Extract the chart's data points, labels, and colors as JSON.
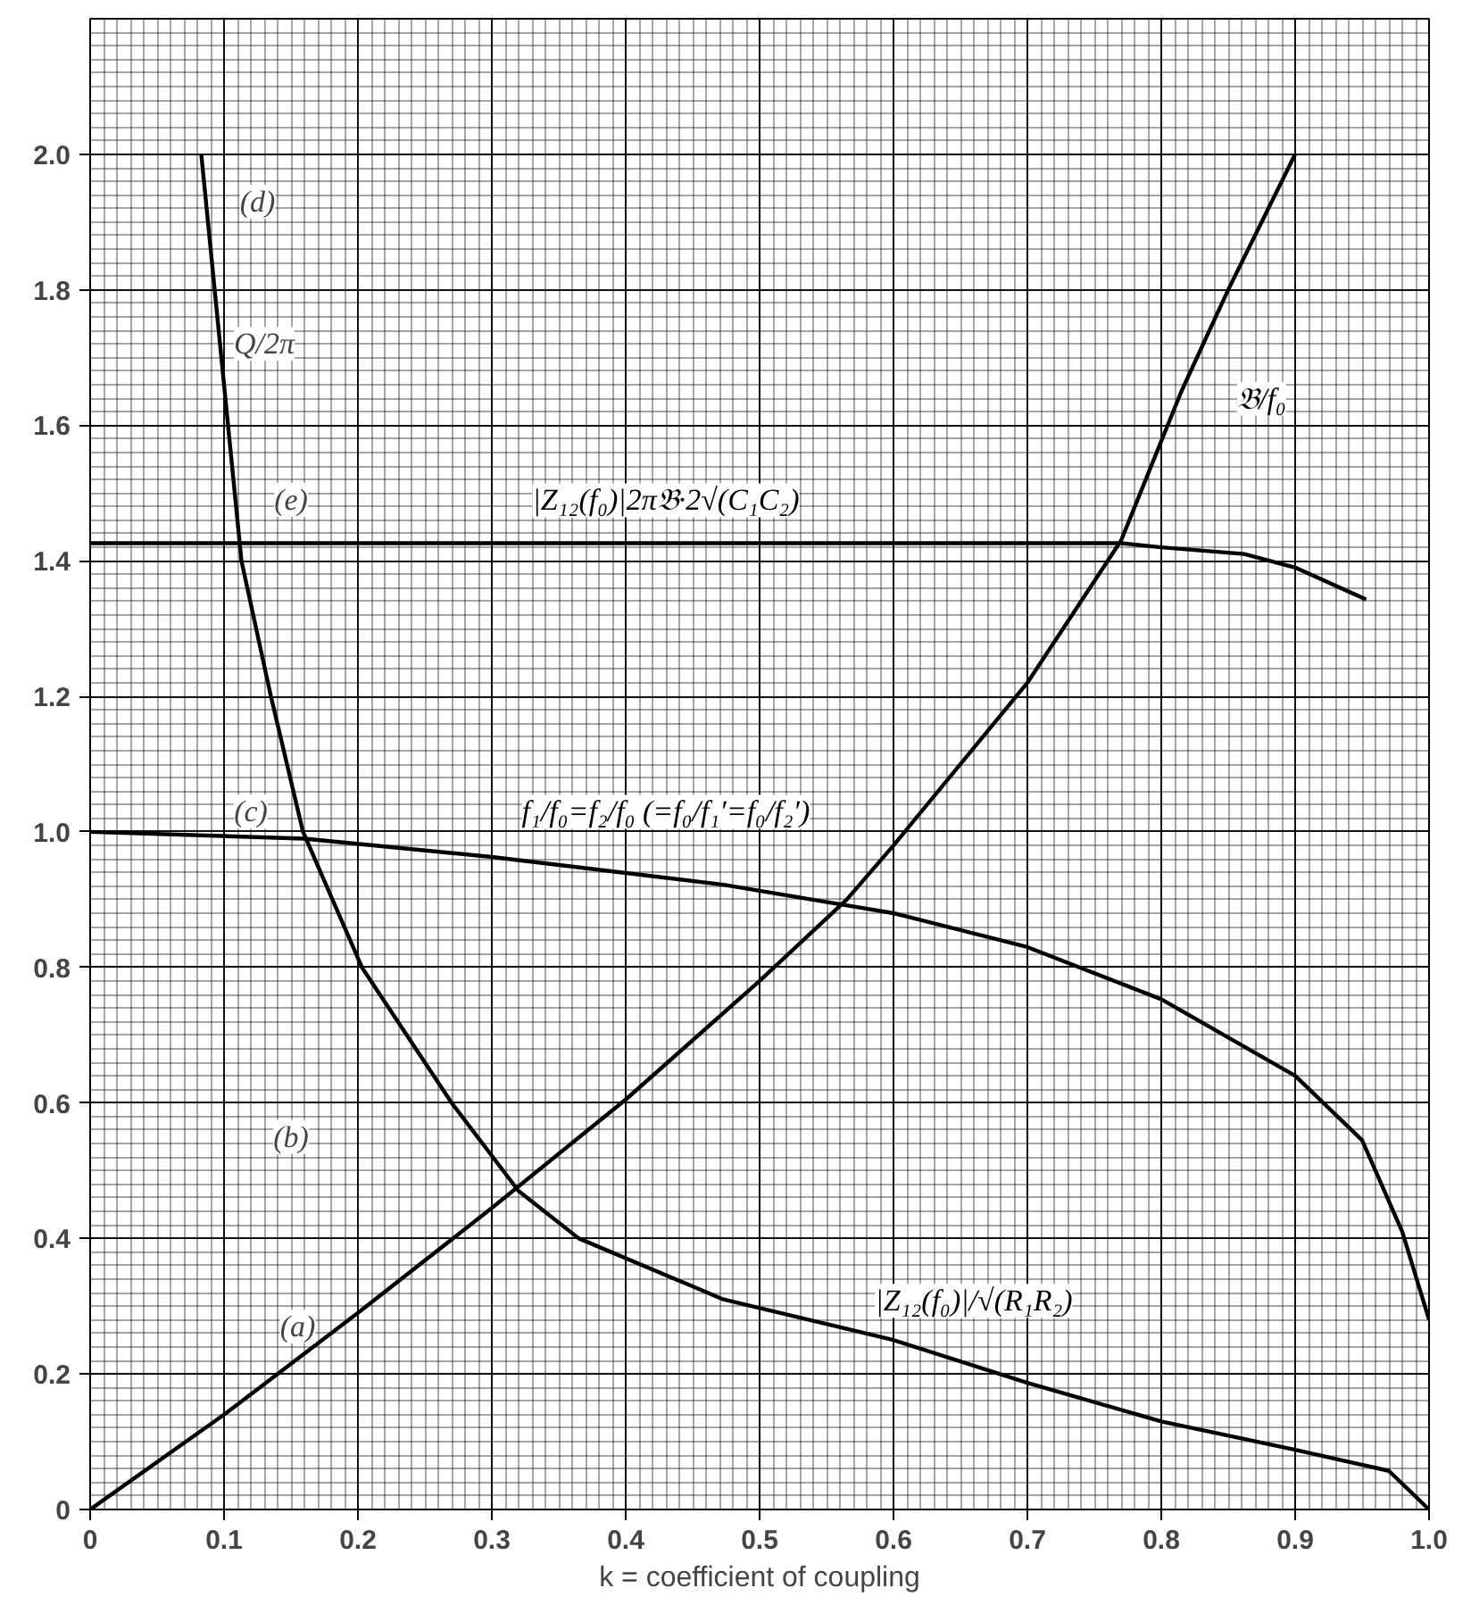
{
  "chart_data": {
    "type": "line",
    "xlabel": "k = coefficient of coupling",
    "xlim": [
      0,
      1.0
    ],
    "ylim": [
      0,
      2.2
    ],
    "xticks": [
      0,
      0.1,
      0.2,
      0.3,
      0.4,
      0.5,
      0.6,
      0.7,
      0.8,
      0.9,
      {
        "value": 1.0,
        "label": "1.0"
      }
    ],
    "yticks": [
      0,
      0.2,
      0.4,
      0.6,
      0.8,
      {
        "value": 1.0,
        "label": "1.0"
      },
      1.2,
      1.4,
      1.6,
      1.8,
      {
        "value": 2.0,
        "label": "2.0"
      }
    ],
    "grid": true,
    "legend": false,
    "marker": "none",
    "line_style": "solid",
    "series": [
      {
        "name": "𝔅/f₀",
        "color": "#000000",
        "x": [
          0,
          0.1,
          0.2,
          0.3,
          0.4,
          0.5,
          0.565,
          0.6,
          0.7,
          0.77,
          0.815,
          0.85,
          0.9
        ],
        "values": [
          0,
          0.14,
          0.29,
          0.445,
          0.605,
          0.78,
          0.9,
          0.98,
          1.22,
          1.43,
          1.65,
          1.8,
          2.0
        ]
      },
      {
        "name": "|Z₁₂(f₀)|/√(R₁R₂)",
        "color": "#000000",
        "x": [
          0.083,
          0.103,
          0.113,
          0.135,
          0.159,
          0.203,
          0.27,
          0.32,
          0.365,
          0.473,
          0.6,
          0.7,
          0.8,
          0.9,
          0.97,
          1.0
        ],
        "values": [
          2.0,
          1.6,
          1.4,
          1.2,
          1.0,
          0.8,
          0.6,
          0.47,
          0.4,
          0.31,
          0.25,
          0.187,
          0.13,
          0.088,
          0.057,
          0
        ]
      },
      {
        "name": "f₁/f₀=f₂/f₀ (=f₀/f₁′=f₀/f₂′)",
        "color": "#000000",
        "x": [
          0,
          0.16,
          0.3,
          0.473,
          0.6,
          0.7,
          0.8,
          0.9,
          0.95,
          0.98,
          1.0
        ],
        "values": [
          1.0,
          0.99,
          0.963,
          0.922,
          0.88,
          0.83,
          0.753,
          0.64,
          0.545,
          0.41,
          0.28
        ]
      },
      {
        "name": "|Z₁₂(f₀)|2π𝔅·2√(C₁C₂)",
        "color": "#000000",
        "x": [
          0,
          0.5,
          0.77,
          0.8,
          0.862,
          0.9,
          0.953
        ],
        "values": [
          1.426,
          1.426,
          1.426,
          1.42,
          1.41,
          1.39,
          1.343
        ]
      }
    ],
    "annotations": [
      {
        "text": "(d)",
        "x": 0.125,
        "y": 1.93
      },
      {
        "text": "Q/2π",
        "x": 0.13,
        "y": 1.72
      },
      {
        "text": "(e)",
        "x": 0.15,
        "y": 1.49
      },
      {
        "text": "(c)",
        "x": 0.12,
        "y": 1.03
      },
      {
        "text": "(b)",
        "x": 0.15,
        "y": 0.55
      },
      {
        "text": "(a)",
        "x": 0.155,
        "y": 0.27
      }
    ]
  }
}
